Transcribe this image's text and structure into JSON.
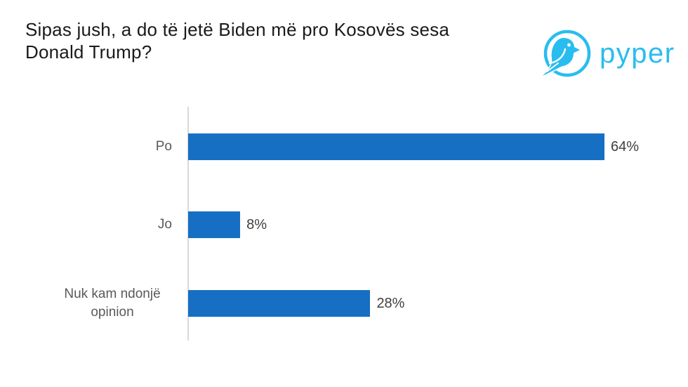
{
  "title": {
    "line1": "Sipas jush, a do të jetë Biden më pro Kosovës sesa",
    "line2": "Donald Trump?"
  },
  "logo": {
    "text": "pyper",
    "brand_color": "#29BDEF",
    "icon": "pyper-bird-in-circle-icon"
  },
  "chart_data": {
    "type": "bar",
    "orientation": "horizontal",
    "title": "Sipas jush, a do të jetë Biden më pro Kosovës sesa Donald Trump?",
    "categories": [
      "Po",
      "Jo",
      "Nuk kam ndonjë opinion"
    ],
    "values": [
      64,
      8,
      28
    ],
    "value_labels": [
      "64%",
      "8%",
      "28%"
    ],
    "xlabel": "",
    "ylabel": "",
    "xlim": [
      0,
      100
    ],
    "unit": "%",
    "grid": false,
    "legend": false,
    "bar_color": "#166FC3",
    "axis_line_color": "#D9D9D9",
    "category_label_color": "#595959",
    "value_label_color": "#3f3f3f"
  }
}
